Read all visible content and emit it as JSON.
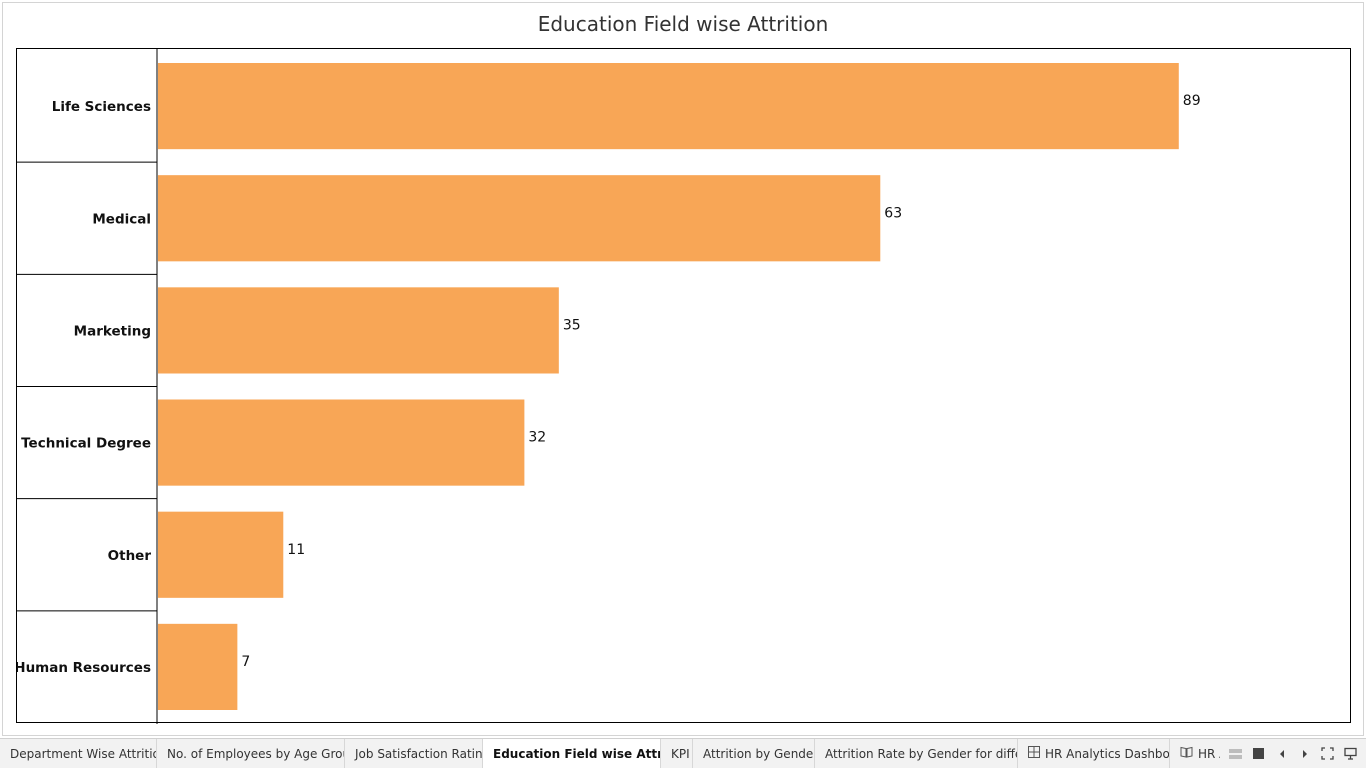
{
  "chart_data": {
    "type": "bar",
    "orientation": "horizontal",
    "title": "Education Field wise Attrition",
    "categories": [
      "Life Sciences",
      "Medical",
      "Marketing",
      "Technical Degree",
      "Other",
      "Human Resources"
    ],
    "values": [
      89,
      63,
      35,
      32,
      11,
      7
    ],
    "data_labels": [
      "89",
      "63",
      "35",
      "32",
      "11",
      "7"
    ],
    "xlim": [
      0,
      104
    ],
    "bar_color": "#f8a656",
    "grid": false,
    "legend": "none"
  },
  "tabs": [
    {
      "label": "Department Wise Attrition",
      "active": false,
      "icon": ""
    },
    {
      "label": "No. of Employees by Age Group",
      "active": false,
      "icon": ""
    },
    {
      "label": "Job Satisfaction Rating",
      "active": false,
      "icon": ""
    },
    {
      "label": "Education Field wise Attrition",
      "active": true,
      "icon": ""
    },
    {
      "label": "KPI",
      "active": false,
      "icon": ""
    },
    {
      "label": "Attrition by Gender",
      "active": false,
      "icon": ""
    },
    {
      "label": "Attrition Rate by Gender for differ...",
      "active": false,
      "icon": ""
    },
    {
      "label": "HR Analytics Dashbord",
      "active": false,
      "icon": "dashboard-grid-icon"
    },
    {
      "label": "HR A",
      "active": false,
      "icon": "story-book-icon"
    }
  ],
  "tab_controls": {
    "icons": [
      "show-filmstrip-icon",
      "show-tabs-icon",
      "previous-sheet-icon",
      "next-sheet-icon",
      "fullscreen-icon",
      "presentation-mode-icon"
    ]
  }
}
